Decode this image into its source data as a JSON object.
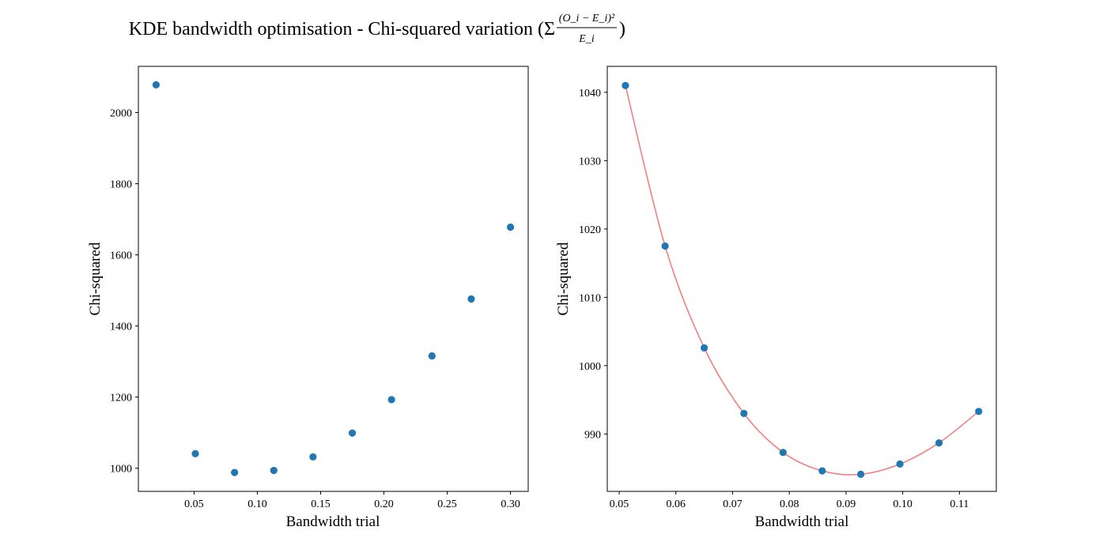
{
  "figure": {
    "suptitle_prefix": "KDE bandwidth optimisation - Chi-squared variation (Σ",
    "formula_numerator": "(O_i − E_i)²",
    "formula_denominator": "E_i",
    "suptitle_suffix": ")"
  },
  "colors": {
    "points": "#1f77b4",
    "fit_line": "#f08080",
    "axes": "#000000"
  },
  "chart_data": [
    {
      "type": "scatter",
      "xlabel": "Bandwidth trial",
      "ylabel": "Chi-squared",
      "xlim": [
        0.006,
        0.314
      ],
      "ylim": [
        935,
        2130
      ],
      "xticks": [
        0.05,
        0.1,
        0.15,
        0.2,
        0.25,
        0.3
      ],
      "xtick_labels": [
        "0.05",
        "0.10",
        "0.15",
        "0.20",
        "0.25",
        "0.30"
      ],
      "yticks": [
        1000,
        1200,
        1400,
        1600,
        1800,
        2000
      ],
      "ytick_labels": [
        "1000",
        "1200",
        "1400",
        "1600",
        "1800",
        "2000"
      ],
      "grid": false,
      "series": [
        {
          "x": [
            0.02,
            0.051,
            0.082,
            0.113,
            0.144,
            0.175,
            0.206,
            0.238,
            0.269,
            0.3
          ],
          "y": [
            2078,
            1041,
            988,
            994,
            1032,
            1099,
            1193,
            1316,
            1476,
            1678
          ]
        }
      ]
    },
    {
      "type": "scatter",
      "xlabel": "Bandwidth trial",
      "ylabel": "Chi-squared",
      "xlim": [
        0.0479,
        0.1165
      ],
      "ylim": [
        981.6,
        1043.8
      ],
      "xticks": [
        0.05,
        0.06,
        0.07,
        0.08,
        0.09,
        0.1,
        0.11
      ],
      "xtick_labels": [
        "0.05",
        "0.06",
        "0.07",
        "0.08",
        "0.09",
        "0.10",
        "0.11"
      ],
      "yticks": [
        990,
        1000,
        1010,
        1020,
        1030,
        1040
      ],
      "ytick_labels": [
        "990",
        "1000",
        "1010",
        "1020",
        "1030",
        "1040"
      ],
      "grid": false,
      "series": [
        {
          "x": [
            0.0511,
            0.0581,
            0.065,
            0.072,
            0.0789,
            0.0858,
            0.0926,
            0.0995,
            0.1064,
            0.1134
          ],
          "y": [
            1041.0,
            1017.5,
            1002.6,
            993.0,
            987.3,
            984.6,
            984.1,
            985.6,
            988.7,
            993.3
          ]
        }
      ],
      "fit": {
        "type": "line",
        "x": [
          0.0511,
          0.0581,
          0.065,
          0.072,
          0.0789,
          0.0858,
          0.0926,
          0.0995,
          0.1064,
          0.1134
        ],
        "y": [
          1041.0,
          1017.5,
          1002.6,
          993.0,
          987.3,
          984.6,
          984.1,
          985.6,
          988.7,
          993.3
        ]
      }
    }
  ]
}
